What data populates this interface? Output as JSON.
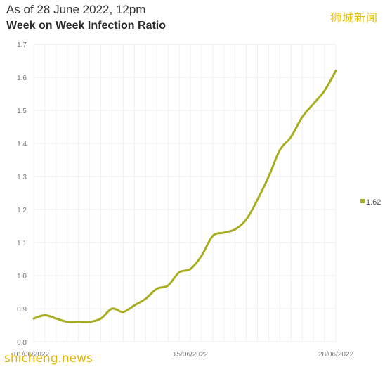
{
  "header": {
    "subtitle": "As of 28 June 2022, 12pm",
    "title": "Week on Week Infection Ratio",
    "logo_text": "狮城新闻",
    "watermark_text": "shicheng.news"
  },
  "chart_data": {
    "type": "line",
    "title": "Week on Week Infection Ratio",
    "subtitle": "As of 28 June 2022, 12pm",
    "xlabel": "",
    "ylabel": "",
    "ylim": [
      0.8,
      1.7
    ],
    "yticks": [
      "0.8",
      "0.9",
      "1.0",
      "1.1",
      "1.2",
      "1.3",
      "1.4",
      "1.5",
      "1.6",
      "1.7"
    ],
    "xtick_labels": [
      {
        "index": 0,
        "label": "01/06/2022"
      },
      {
        "index": 14,
        "label": "15/06/2022"
      },
      {
        "index": 27,
        "label": "28/06/2022"
      }
    ],
    "grid": true,
    "line_color": "#a8ad1f",
    "series": [
      {
        "name": "",
        "end_label": "1.62",
        "x": [
          "01/06/2022",
          "02/06/2022",
          "03/06/2022",
          "04/06/2022",
          "05/06/2022",
          "06/06/2022",
          "07/06/2022",
          "08/06/2022",
          "09/06/2022",
          "10/06/2022",
          "11/06/2022",
          "12/06/2022",
          "13/06/2022",
          "14/06/2022",
          "15/06/2022",
          "16/06/2022",
          "17/06/2022",
          "18/06/2022",
          "19/06/2022",
          "20/06/2022",
          "21/06/2022",
          "22/06/2022",
          "23/06/2022",
          "24/06/2022",
          "25/06/2022",
          "26/06/2022",
          "27/06/2022",
          "28/06/2022"
        ],
        "values": [
          0.87,
          0.88,
          0.87,
          0.86,
          0.86,
          0.86,
          0.87,
          0.9,
          0.89,
          0.91,
          0.93,
          0.96,
          0.97,
          1.01,
          1.02,
          1.06,
          1.12,
          1.13,
          1.14,
          1.17,
          1.23,
          1.3,
          1.38,
          1.42,
          1.48,
          1.52,
          1.56,
          1.62
        ]
      }
    ]
  }
}
